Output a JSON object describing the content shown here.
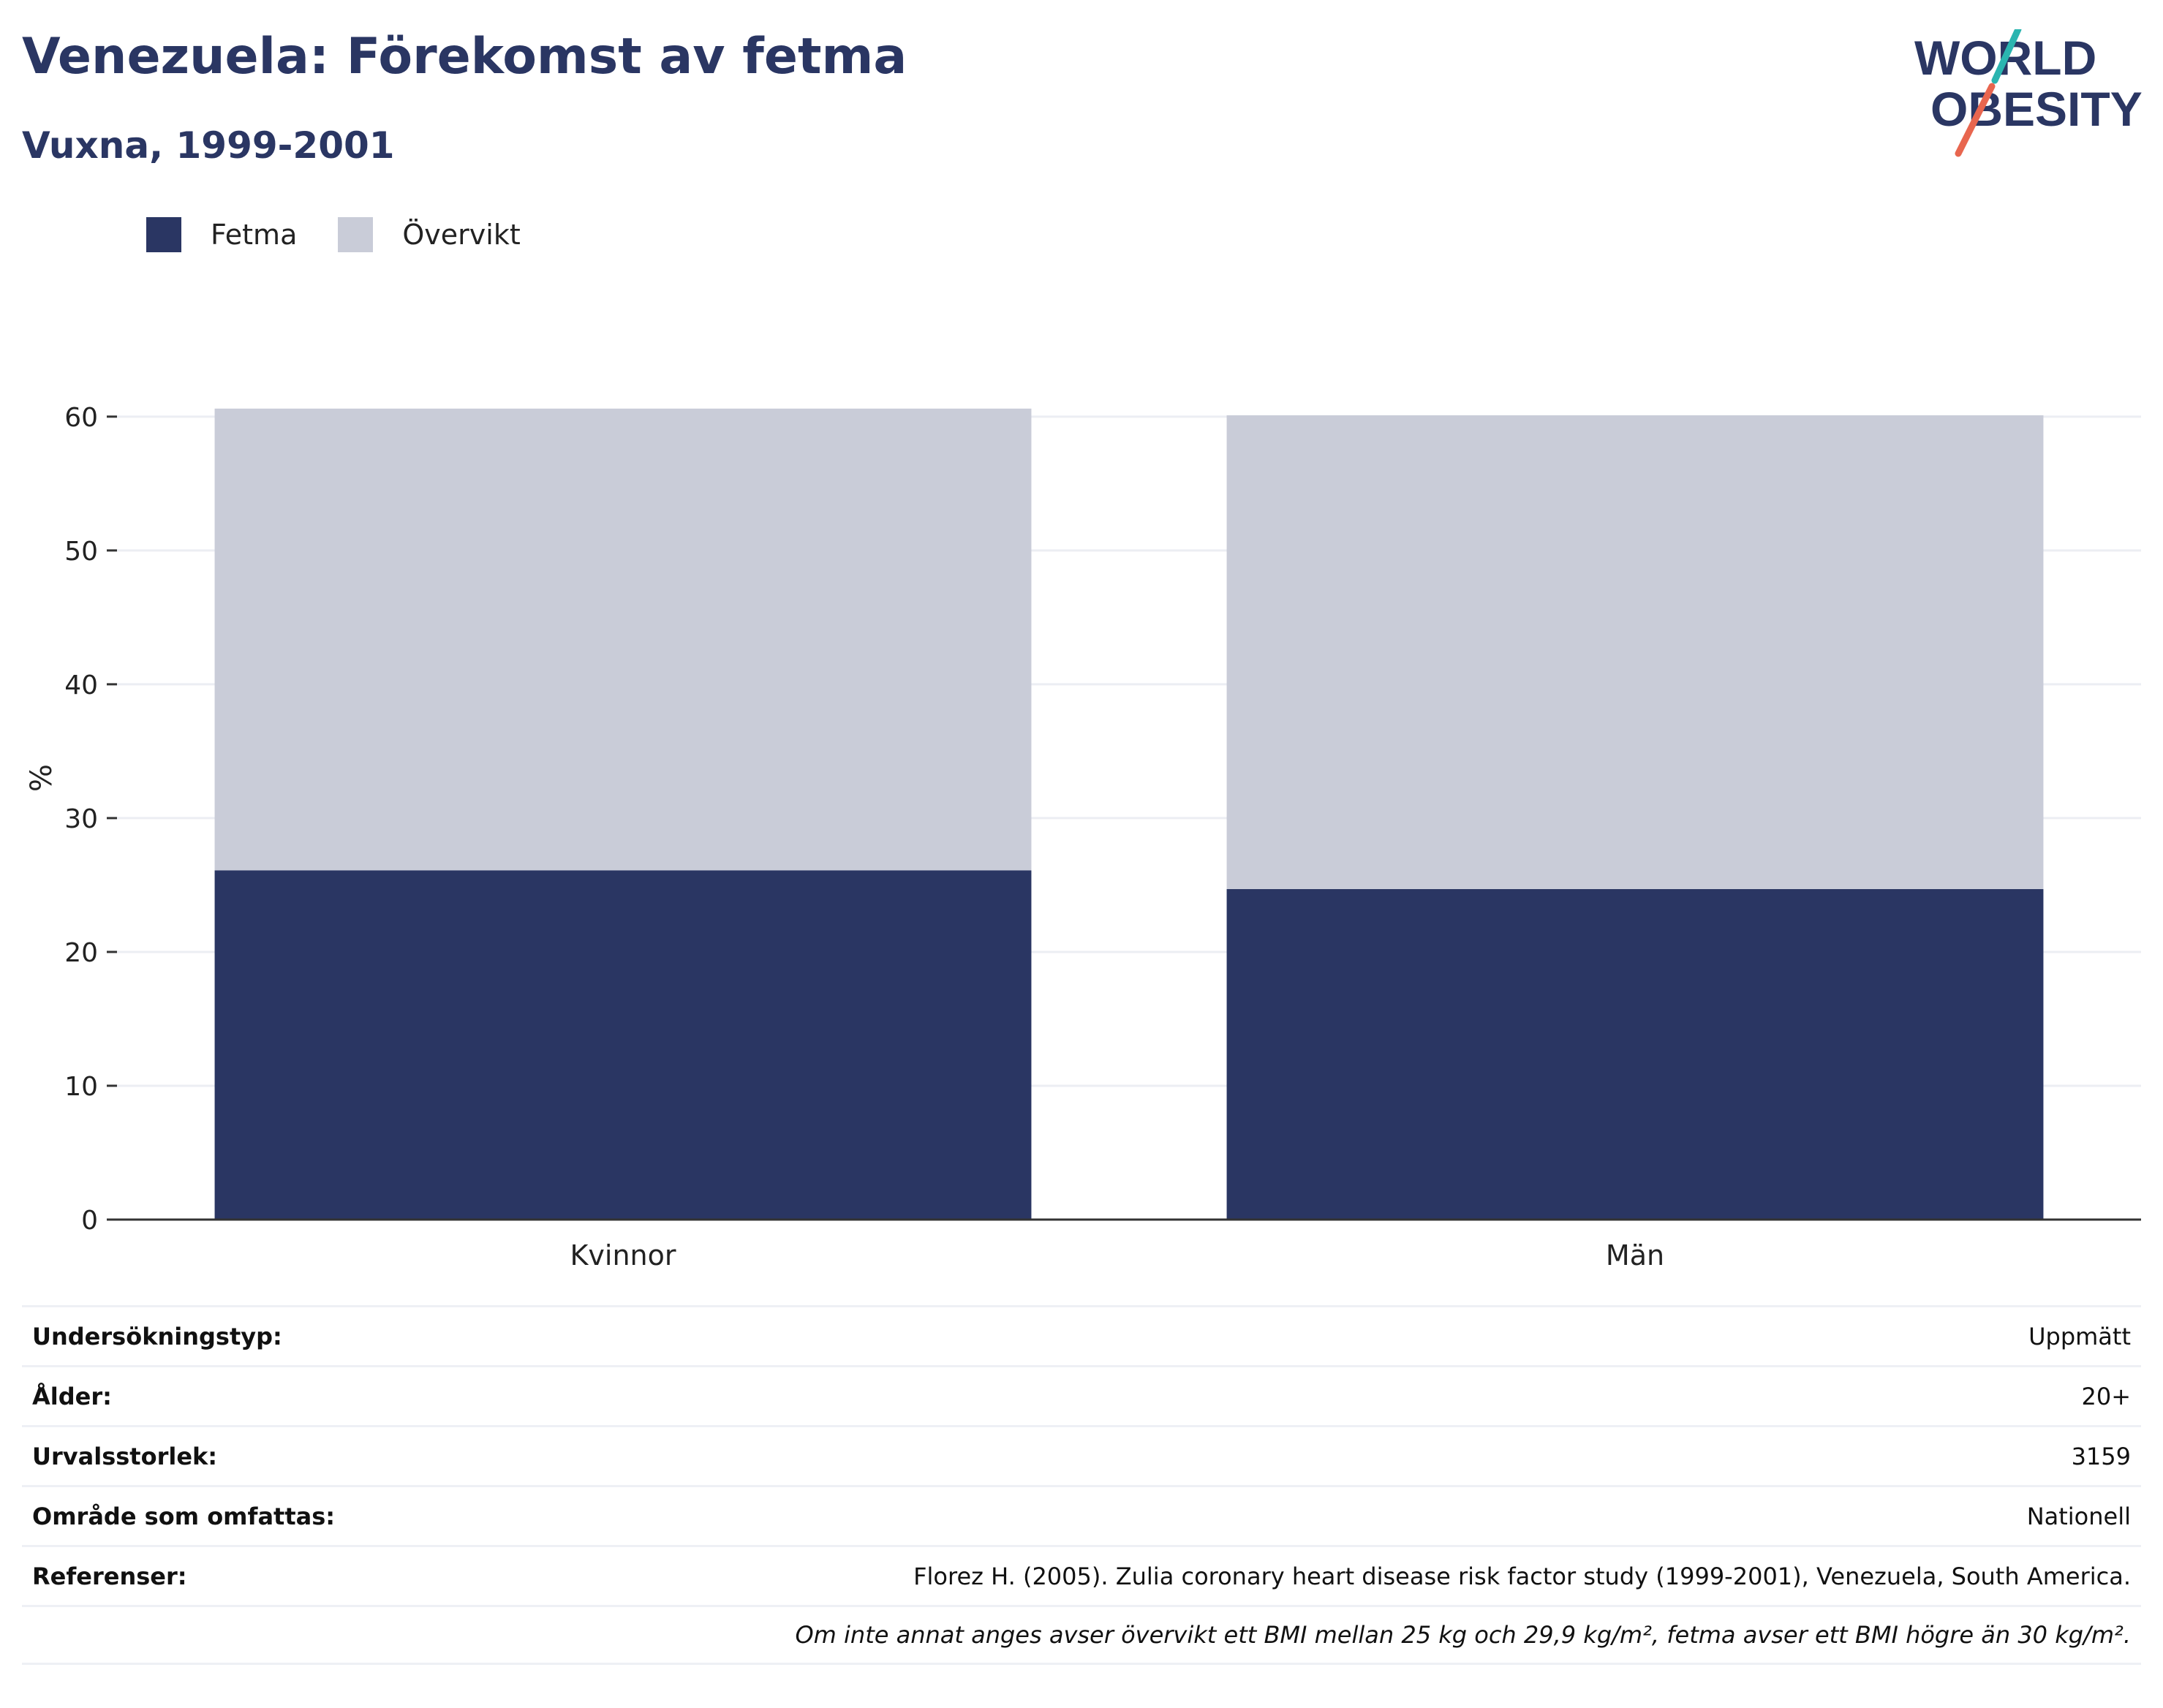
{
  "header": {
    "title": "Venezuela: Förekomst av fetma",
    "subtitle": "Vuxna, 1999-2001"
  },
  "logo": {
    "line1": "WORLD",
    "line2": "OBESITY",
    "colors": {
      "text": "#2a3663",
      "slash_top": "#2bb5b0",
      "slash_bottom": "#e8664f"
    }
  },
  "colors": {
    "fetma": "#2a3663",
    "overvikt": "#c9ccd8",
    "grid": "#eceef3",
    "axis": "#333333"
  },
  "chart_data": {
    "type": "bar",
    "stacked": true,
    "categories": [
      "Kvinnor",
      "Män"
    ],
    "series": [
      {
        "name": "Fetma",
        "values": [
          26.1,
          24.7
        ]
      },
      {
        "name": "Övervikt",
        "values": [
          34.5,
          35.4
        ]
      }
    ],
    "title": "",
    "xlabel": "",
    "ylabel": "%",
    "ylim": [
      0,
      66
    ],
    "yticks": [
      0,
      10,
      20,
      30,
      40,
      50,
      60
    ],
    "grid": true,
    "legend_position": "top-left"
  },
  "info": [
    {
      "label": "Undersökningstyp:",
      "value": "Uppmätt"
    },
    {
      "label": "Ålder:",
      "value": "20+"
    },
    {
      "label": "Urvalsstorlek:",
      "value": "3159"
    },
    {
      "label": "Område som omfattas:",
      "value": "Nationell"
    },
    {
      "label": "Referenser:",
      "value": "Florez H. (2005). Zulia coronary heart disease risk factor study (1999-2001), Venezuela, South America."
    },
    {
      "label": "",
      "value": "Om inte annat anges avser övervikt ett BMI mellan 25 kg och 29,9 kg/m², fetma avser ett BMI högre än 30 kg/m²."
    }
  ]
}
